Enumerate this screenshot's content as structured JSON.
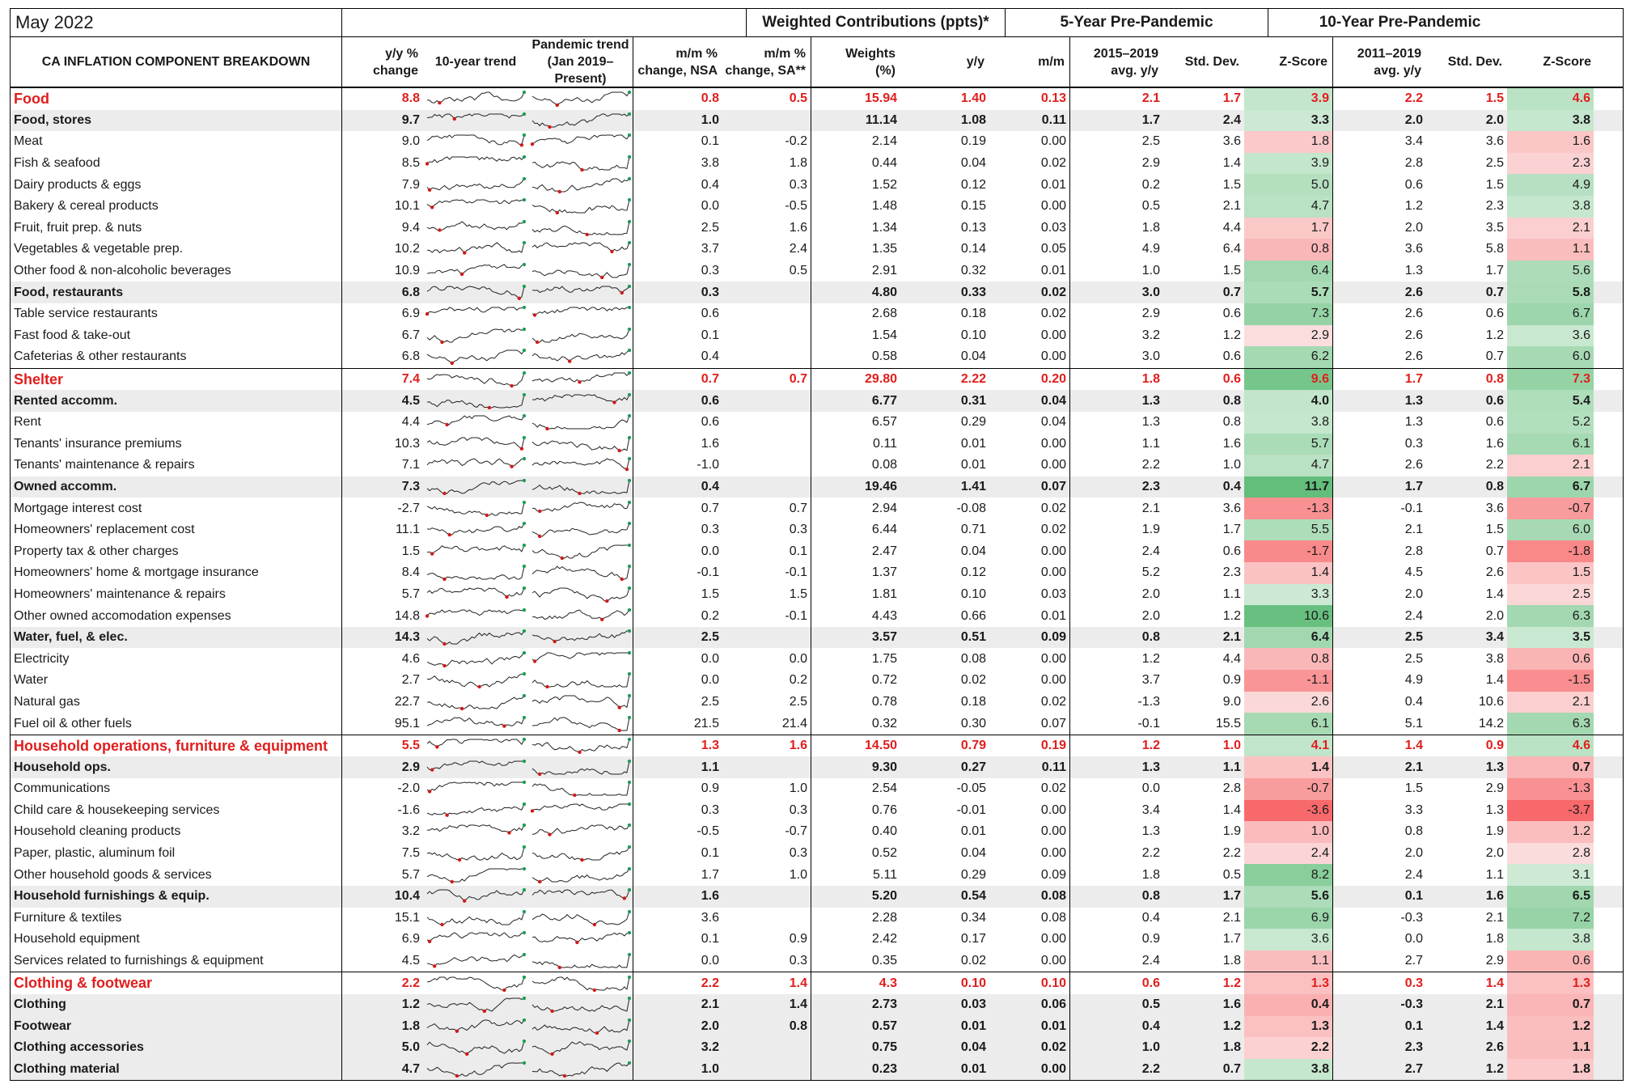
{
  "title": "May 2022",
  "group_headers": {
    "weighted": "Weighted Contributions (ppts)*",
    "five_year": "5-Year Pre-Pandemic",
    "ten_year": "10-Year Pre-Pandemic"
  },
  "columns": {
    "name": "CA INFLATION COMPONENT BREAKDOWN",
    "yy_line1": "y/y %",
    "yy_line2": "change",
    "trend10": "10-year trend",
    "pandemic_line1": "Pandemic trend",
    "pandemic_line2": "(Jan 2019–Present)",
    "mm_nsa_line1": "m/m %",
    "mm_nsa_line2": "change, NSA",
    "mm_sa_line1": "m/m %",
    "mm_sa_line2": "change, SA**",
    "weights_line1": "Weights",
    "weights_line2": "(%)",
    "c_yy": "y/y",
    "c_mm": "m/m",
    "avg5_line1": "2015–2019",
    "avg5_line2": "avg. y/y",
    "sd5": "Std. Dev.",
    "z5": "Z-Score",
    "avg10_line1": "2011–2019",
    "avg10_line2": "avg. y/y",
    "sd10": "Std. Dev.",
    "z10": "Z-Score"
  },
  "rows": [
    {
      "name": "Food",
      "type": "cat",
      "yy": "8.8",
      "mm_nsa": "0.8",
      "mm_sa": "0.5",
      "w": "15.94",
      "cyy": "1.40",
      "cmm": "0.13",
      "a5": "2.1",
      "s5": "1.7",
      "z5": "3.9",
      "a10": "2.2",
      "s10": "1.5",
      "z10": "4.6"
    },
    {
      "name": "Food, stores",
      "type": "sub",
      "yy": "9.7",
      "mm_nsa": "1.0",
      "mm_sa": "",
      "w": "11.14",
      "cyy": "1.08",
      "cmm": "0.11",
      "a5": "1.7",
      "s5": "2.4",
      "z5": "3.3",
      "a10": "2.0",
      "s10": "2.0",
      "z10": "3.8"
    },
    {
      "name": "Meat",
      "type": "item",
      "yy": "9.0",
      "mm_nsa": "0.1",
      "mm_sa": "-0.2",
      "w": "2.14",
      "cyy": "0.19",
      "cmm": "0.00",
      "a5": "2.5",
      "s5": "3.6",
      "z5": "1.8",
      "a10": "3.4",
      "s10": "3.6",
      "z10": "1.6"
    },
    {
      "name": "Fish & seafood",
      "type": "item",
      "yy": "8.5",
      "mm_nsa": "3.8",
      "mm_sa": "1.8",
      "w": "0.44",
      "cyy": "0.04",
      "cmm": "0.02",
      "a5": "2.9",
      "s5": "1.4",
      "z5": "3.9",
      "a10": "2.8",
      "s10": "2.5",
      "z10": "2.3"
    },
    {
      "name": "Dairy products & eggs",
      "type": "item",
      "yy": "7.9",
      "mm_nsa": "0.4",
      "mm_sa": "0.3",
      "w": "1.52",
      "cyy": "0.12",
      "cmm": "0.01",
      "a5": "0.2",
      "s5": "1.5",
      "z5": "5.0",
      "a10": "0.6",
      "s10": "1.5",
      "z10": "4.9"
    },
    {
      "name": "Bakery & cereal products",
      "type": "item",
      "yy": "10.1",
      "mm_nsa": "0.0",
      "mm_sa": "-0.5",
      "w": "1.48",
      "cyy": "0.15",
      "cmm": "0.00",
      "a5": "0.5",
      "s5": "2.1",
      "z5": "4.7",
      "a10": "1.2",
      "s10": "2.3",
      "z10": "3.8"
    },
    {
      "name": "Fruit, fruit prep. & nuts",
      "type": "item",
      "yy": "9.4",
      "mm_nsa": "2.5",
      "mm_sa": "1.6",
      "w": "1.34",
      "cyy": "0.13",
      "cmm": "0.03",
      "a5": "1.8",
      "s5": "4.4",
      "z5": "1.7",
      "a10": "2.0",
      "s10": "3.5",
      "z10": "2.1"
    },
    {
      "name": "Vegetables & vegetable prep.",
      "type": "item",
      "yy": "10.2",
      "mm_nsa": "3.7",
      "mm_sa": "2.4",
      "w": "1.35",
      "cyy": "0.14",
      "cmm": "0.05",
      "a5": "4.9",
      "s5": "6.4",
      "z5": "0.8",
      "a10": "3.6",
      "s10": "5.8",
      "z10": "1.1"
    },
    {
      "name": "Other food & non-alcoholic beverages",
      "type": "item",
      "yy": "10.9",
      "mm_nsa": "0.3",
      "mm_sa": "0.5",
      "w": "2.91",
      "cyy": "0.32",
      "cmm": "0.01",
      "a5": "1.0",
      "s5": "1.5",
      "z5": "6.4",
      "a10": "1.3",
      "s10": "1.7",
      "z10": "5.6"
    },
    {
      "name": "Food, restaurants",
      "type": "sub",
      "yy": "6.8",
      "mm_nsa": "0.3",
      "mm_sa": "",
      "w": "4.80",
      "cyy": "0.33",
      "cmm": "0.02",
      "a5": "3.0",
      "s5": "0.7",
      "z5": "5.7",
      "a10": "2.6",
      "s10": "0.7",
      "z10": "5.8"
    },
    {
      "name": "Table service restaurants",
      "type": "item",
      "yy": "6.9",
      "mm_nsa": "0.6",
      "mm_sa": "",
      "w": "2.68",
      "cyy": "0.18",
      "cmm": "0.02",
      "a5": "2.9",
      "s5": "0.6",
      "z5": "7.3",
      "a10": "2.6",
      "s10": "0.6",
      "z10": "6.7"
    },
    {
      "name": "Fast food & take-out",
      "type": "item",
      "yy": "6.7",
      "mm_nsa": "0.1",
      "mm_sa": "",
      "w": "1.54",
      "cyy": "0.10",
      "cmm": "0.00",
      "a5": "3.2",
      "s5": "1.2",
      "z5": "2.9",
      "a10": "2.6",
      "s10": "1.2",
      "z10": "3.6"
    },
    {
      "name": "Cafeterias & other restaurants",
      "type": "item",
      "yy": "6.8",
      "mm_nsa": "0.4",
      "mm_sa": "",
      "w": "0.58",
      "cyy": "0.04",
      "cmm": "0.00",
      "a5": "3.0",
      "s5": "0.6",
      "z5": "6.2",
      "a10": "2.6",
      "s10": "0.7",
      "z10": "6.0"
    },
    {
      "name": "Shelter",
      "type": "cat",
      "yy": "7.4",
      "mm_nsa": "0.7",
      "mm_sa": "0.7",
      "w": "29.80",
      "cyy": "2.22",
      "cmm": "0.20",
      "a5": "1.8",
      "s5": "0.6",
      "z5": "9.6",
      "a10": "1.7",
      "s10": "0.8",
      "z10": "7.3"
    },
    {
      "name": "Rented accomm.",
      "type": "sub",
      "yy": "4.5",
      "mm_nsa": "0.6",
      "mm_sa": "",
      "w": "6.77",
      "cyy": "0.31",
      "cmm": "0.04",
      "a5": "1.3",
      "s5": "0.8",
      "z5": "4.0",
      "a10": "1.3",
      "s10": "0.6",
      "z10": "5.4"
    },
    {
      "name": "Rent",
      "type": "item",
      "yy": "4.4",
      "mm_nsa": "0.6",
      "mm_sa": "",
      "w": "6.57",
      "cyy": "0.29",
      "cmm": "0.04",
      "a5": "1.3",
      "s5": "0.8",
      "z5": "3.8",
      "a10": "1.3",
      "s10": "0.6",
      "z10": "5.2"
    },
    {
      "name": "Tenants' insurance premiums",
      "type": "item",
      "yy": "10.3",
      "mm_nsa": "1.6",
      "mm_sa": "",
      "w": "0.11",
      "cyy": "0.01",
      "cmm": "0.00",
      "a5": "1.1",
      "s5": "1.6",
      "z5": "5.7",
      "a10": "0.3",
      "s10": "1.6",
      "z10": "6.1"
    },
    {
      "name": "Tenants' maintenance & repairs",
      "type": "item",
      "yy": "7.1",
      "mm_nsa": "-1.0",
      "mm_sa": "",
      "w": "0.08",
      "cyy": "0.01",
      "cmm": "0.00",
      "a5": "2.2",
      "s5": "1.0",
      "z5": "4.7",
      "a10": "2.6",
      "s10": "2.2",
      "z10": "2.1"
    },
    {
      "name": "Owned accomm.",
      "type": "sub",
      "yy": "7.3",
      "mm_nsa": "0.4",
      "mm_sa": "",
      "w": "19.46",
      "cyy": "1.41",
      "cmm": "0.07",
      "a5": "2.3",
      "s5": "0.4",
      "z5": "11.7",
      "a10": "1.7",
      "s10": "0.8",
      "z10": "6.7"
    },
    {
      "name": "Mortgage interest cost",
      "type": "item",
      "yy": "-2.7",
      "mm_nsa": "0.7",
      "mm_sa": "0.7",
      "w": "2.94",
      "cyy": "-0.08",
      "cmm": "0.02",
      "a5": "2.1",
      "s5": "3.6",
      "z5": "-1.3",
      "a10": "-0.1",
      "s10": "3.6",
      "z10": "-0.7"
    },
    {
      "name": "Homeowners' replacement cost",
      "type": "item",
      "yy": "11.1",
      "mm_nsa": "0.3",
      "mm_sa": "0.3",
      "w": "6.44",
      "cyy": "0.71",
      "cmm": "0.02",
      "a5": "1.9",
      "s5": "1.7",
      "z5": "5.5",
      "a10": "2.1",
      "s10": "1.5",
      "z10": "6.0"
    },
    {
      "name": "Property tax & other charges",
      "type": "item",
      "yy": "1.5",
      "mm_nsa": "0.0",
      "mm_sa": "0.1",
      "w": "2.47",
      "cyy": "0.04",
      "cmm": "0.00",
      "a5": "2.4",
      "s5": "0.6",
      "z5": "-1.7",
      "a10": "2.8",
      "s10": "0.7",
      "z10": "-1.8"
    },
    {
      "name": "Homeowners' home & mortgage insurance",
      "type": "item",
      "yy": "8.4",
      "mm_nsa": "-0.1",
      "mm_sa": "-0.1",
      "w": "1.37",
      "cyy": "0.12",
      "cmm": "0.00",
      "a5": "5.2",
      "s5": "2.3",
      "z5": "1.4",
      "a10": "4.5",
      "s10": "2.6",
      "z10": "1.5"
    },
    {
      "name": "Homeowners' maintenance & repairs",
      "type": "item",
      "yy": "5.7",
      "mm_nsa": "1.5",
      "mm_sa": "1.5",
      "w": "1.81",
      "cyy": "0.10",
      "cmm": "0.03",
      "a5": "2.0",
      "s5": "1.1",
      "z5": "3.3",
      "a10": "2.0",
      "s10": "1.4",
      "z10": "2.5"
    },
    {
      "name": "Other owned accomodation expenses",
      "type": "item",
      "yy": "14.8",
      "mm_nsa": "0.2",
      "mm_sa": "-0.1",
      "w": "4.43",
      "cyy": "0.66",
      "cmm": "0.01",
      "a5": "2.0",
      "s5": "1.2",
      "z5": "10.6",
      "a10": "2.4",
      "s10": "2.0",
      "z10": "6.3"
    },
    {
      "name": "Water, fuel, & elec.",
      "type": "sub",
      "yy": "14.3",
      "mm_nsa": "2.5",
      "mm_sa": "",
      "w": "3.57",
      "cyy": "0.51",
      "cmm": "0.09",
      "a5": "0.8",
      "s5": "2.1",
      "z5": "6.4",
      "a10": "2.5",
      "s10": "3.4",
      "z10": "3.5"
    },
    {
      "name": "Electricity",
      "type": "item",
      "yy": "4.6",
      "mm_nsa": "0.0",
      "mm_sa": "0.0",
      "w": "1.75",
      "cyy": "0.08",
      "cmm": "0.00",
      "a5": "1.2",
      "s5": "4.4",
      "z5": "0.8",
      "a10": "2.5",
      "s10": "3.8",
      "z10": "0.6"
    },
    {
      "name": "Water",
      "type": "item",
      "yy": "2.7",
      "mm_nsa": "0.0",
      "mm_sa": "0.2",
      "w": "0.72",
      "cyy": "0.02",
      "cmm": "0.00",
      "a5": "3.7",
      "s5": "0.9",
      "z5": "-1.1",
      "a10": "4.9",
      "s10": "1.4",
      "z10": "-1.5"
    },
    {
      "name": "Natural gas",
      "type": "item",
      "yy": "22.7",
      "mm_nsa": "2.5",
      "mm_sa": "2.5",
      "w": "0.78",
      "cyy": "0.18",
      "cmm": "0.02",
      "a5": "-1.3",
      "s5": "9.0",
      "z5": "2.6",
      "a10": "0.4",
      "s10": "10.6",
      "z10": "2.1"
    },
    {
      "name": "Fuel oil & other fuels",
      "type": "item",
      "yy": "95.1",
      "mm_nsa": "21.5",
      "mm_sa": "21.4",
      "w": "0.32",
      "cyy": "0.30",
      "cmm": "0.07",
      "a5": "-0.1",
      "s5": "15.5",
      "z5": "6.1",
      "a10": "5.1",
      "s10": "14.2",
      "z10": "6.3"
    },
    {
      "name": "Household operations, furniture & equipment",
      "type": "cat",
      "yy": "5.5",
      "mm_nsa": "1.3",
      "mm_sa": "1.6",
      "w": "14.50",
      "cyy": "0.79",
      "cmm": "0.19",
      "a5": "1.2",
      "s5": "1.0",
      "z5": "4.1",
      "a10": "1.4",
      "s10": "0.9",
      "z10": "4.6"
    },
    {
      "name": "Household ops.",
      "type": "sub",
      "yy": "2.9",
      "mm_nsa": "1.1",
      "mm_sa": "",
      "w": "9.30",
      "cyy": "0.27",
      "cmm": "0.11",
      "a5": "1.3",
      "s5": "1.1",
      "z5": "1.4",
      "a10": "2.1",
      "s10": "1.3",
      "z10": "0.7"
    },
    {
      "name": "Communications",
      "type": "item",
      "yy": "-2.0",
      "mm_nsa": "0.9",
      "mm_sa": "1.0",
      "w": "2.54",
      "cyy": "-0.05",
      "cmm": "0.02",
      "a5": "0.0",
      "s5": "2.8",
      "z5": "-0.7",
      "a10": "1.5",
      "s10": "2.9",
      "z10": "-1.3"
    },
    {
      "name": "Child care & housekeeping services",
      "type": "item",
      "yy": "-1.6",
      "mm_nsa": "0.3",
      "mm_sa": "0.3",
      "w": "0.76",
      "cyy": "-0.01",
      "cmm": "0.00",
      "a5": "3.4",
      "s5": "1.4",
      "z5": "-3.6",
      "a10": "3.3",
      "s10": "1.3",
      "z10": "-3.7"
    },
    {
      "name": "Household cleaning products",
      "type": "item",
      "yy": "3.2",
      "mm_nsa": "-0.5",
      "mm_sa": "-0.7",
      "w": "0.40",
      "cyy": "0.01",
      "cmm": "0.00",
      "a5": "1.3",
      "s5": "1.9",
      "z5": "1.0",
      "a10": "0.8",
      "s10": "1.9",
      "z10": "1.2"
    },
    {
      "name": "Paper, plastic, aluminum foil",
      "type": "item",
      "yy": "7.5",
      "mm_nsa": "0.1",
      "mm_sa": "0.3",
      "w": "0.52",
      "cyy": "0.04",
      "cmm": "0.00",
      "a5": "2.2",
      "s5": "2.2",
      "z5": "2.4",
      "a10": "2.0",
      "s10": "2.0",
      "z10": "2.8"
    },
    {
      "name": "Other household goods & services",
      "type": "item",
      "yy": "5.7",
      "mm_nsa": "1.7",
      "mm_sa": "1.0",
      "w": "5.11",
      "cyy": "0.29",
      "cmm": "0.09",
      "a5": "1.8",
      "s5": "0.5",
      "z5": "8.2",
      "a10": "2.4",
      "s10": "1.1",
      "z10": "3.1"
    },
    {
      "name": "Household furnishings & equip.",
      "type": "sub",
      "yy": "10.4",
      "mm_nsa": "1.6",
      "mm_sa": "",
      "w": "5.20",
      "cyy": "0.54",
      "cmm": "0.08",
      "a5": "0.8",
      "s5": "1.7",
      "z5": "5.6",
      "a10": "0.1",
      "s10": "1.6",
      "z10": "6.5"
    },
    {
      "name": "Furniture & textiles",
      "type": "item",
      "yy": "15.1",
      "mm_nsa": "3.6",
      "mm_sa": "",
      "w": "2.28",
      "cyy": "0.34",
      "cmm": "0.08",
      "a5": "0.4",
      "s5": "2.1",
      "z5": "6.9",
      "a10": "-0.3",
      "s10": "2.1",
      "z10": "7.2"
    },
    {
      "name": "Household equipment",
      "type": "item",
      "yy": "6.9",
      "mm_nsa": "0.1",
      "mm_sa": "0.9",
      "w": "2.42",
      "cyy": "0.17",
      "cmm": "0.00",
      "a5": "0.9",
      "s5": "1.7",
      "z5": "3.6",
      "a10": "0.0",
      "s10": "1.8",
      "z10": "3.8"
    },
    {
      "name": "Services related to furnishings & equipment",
      "type": "item",
      "yy": "4.5",
      "mm_nsa": "0.0",
      "mm_sa": "0.3",
      "w": "0.35",
      "cyy": "0.02",
      "cmm": "0.00",
      "a5": "2.4",
      "s5": "1.8",
      "z5": "1.1",
      "a10": "2.7",
      "s10": "2.9",
      "z10": "0.6"
    },
    {
      "name": "Clothing & footwear",
      "type": "cat",
      "yy": "2.2",
      "mm_nsa": "2.2",
      "mm_sa": "1.4",
      "w": "4.3",
      "cyy": "0.10",
      "cmm": "0.10",
      "a5": "0.6",
      "s5": "1.2",
      "z5": "1.3",
      "a10": "0.3",
      "s10": "1.4",
      "z10": "1.3"
    },
    {
      "name": "Clothing",
      "type": "sub",
      "yy": "1.2",
      "mm_nsa": "2.1",
      "mm_sa": "1.4",
      "w": "2.73",
      "cyy": "0.03",
      "cmm": "0.06",
      "a5": "0.5",
      "s5": "1.6",
      "z5": "0.4",
      "a10": "-0.3",
      "s10": "2.1",
      "z10": "0.7"
    },
    {
      "name": "Footwear",
      "type": "sub",
      "yy": "1.8",
      "mm_nsa": "2.0",
      "mm_sa": "0.8",
      "w": "0.57",
      "cyy": "0.01",
      "cmm": "0.01",
      "a5": "0.4",
      "s5": "1.2",
      "z5": "1.3",
      "a10": "0.1",
      "s10": "1.4",
      "z10": "1.2"
    },
    {
      "name": "Clothing accessories",
      "type": "sub",
      "yy": "5.0",
      "mm_nsa": "3.2",
      "mm_sa": "",
      "w": "0.75",
      "cyy": "0.04",
      "cmm": "0.02",
      "a5": "1.0",
      "s5": "1.8",
      "z5": "2.2",
      "a10": "2.3",
      "s10": "2.6",
      "z10": "1.1"
    },
    {
      "name": "Clothing material",
      "type": "sub",
      "yy": "4.7",
      "mm_nsa": "1.0",
      "mm_sa": "",
      "w": "0.23",
      "cyy": "0.01",
      "cmm": "0.00",
      "a5": "2.2",
      "s5": "0.7",
      "z5": "3.8",
      "a10": "2.7",
      "s10": "1.2",
      "z10": "1.8"
    }
  ],
  "colors": {
    "category_red": "#e11d1d",
    "shade_gray": "#ececec",
    "z_high": "#63be7b",
    "z_low": "#f8696b",
    "marker_green": "#1f9d5a",
    "marker_red": "#d11a1a"
  }
}
